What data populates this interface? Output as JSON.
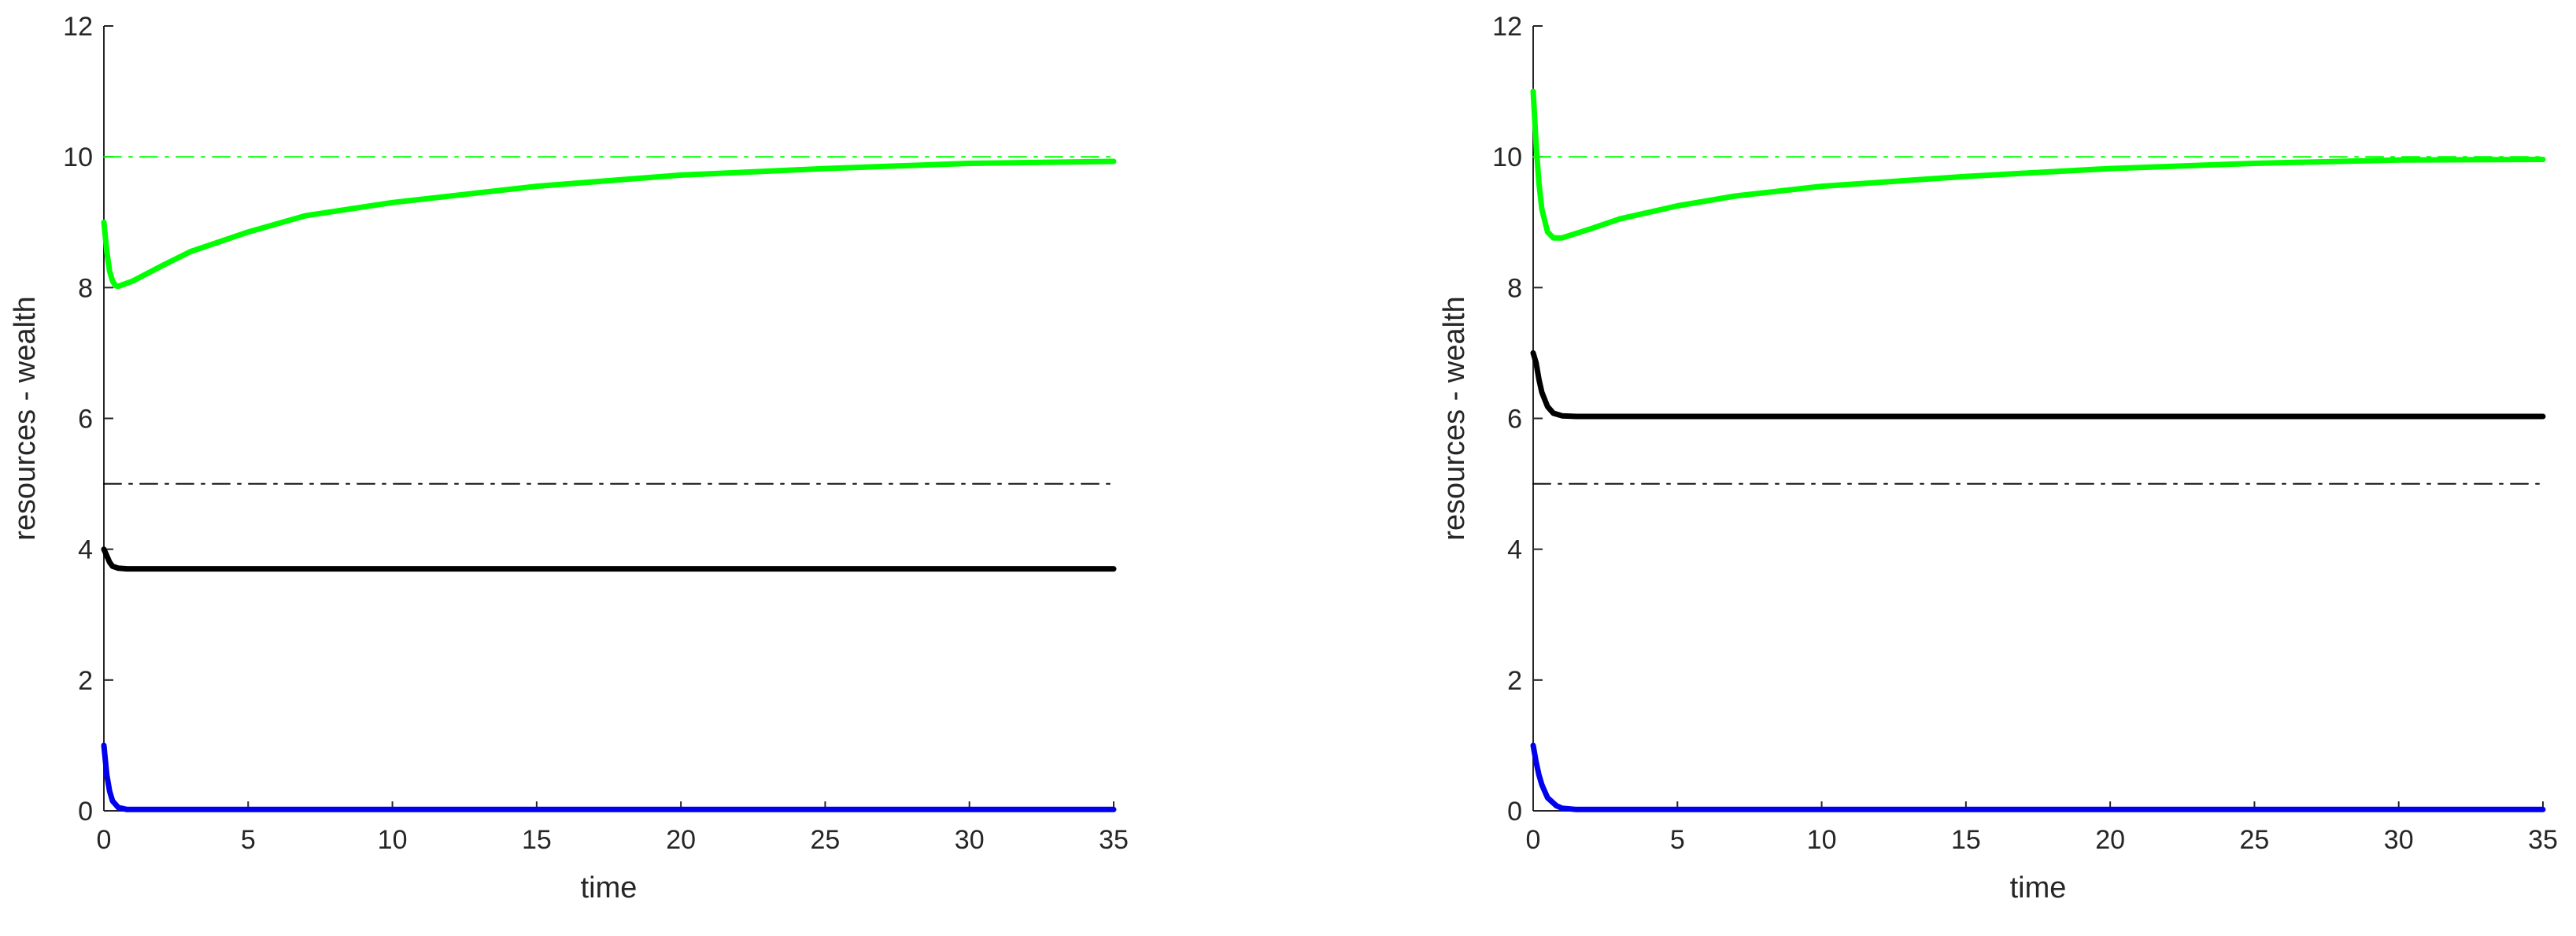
{
  "chart_data": [
    {
      "type": "line",
      "title": "",
      "xlabel": "time",
      "ylabel": "resources - wealth",
      "xlim": [
        0,
        35
      ],
      "ylim": [
        0,
        12
      ],
      "xticks": [
        0,
        5,
        10,
        15,
        20,
        25,
        30,
        35
      ],
      "yticks": [
        0,
        2,
        4,
        6,
        8,
        10,
        12
      ],
      "grid": false,
      "series": [
        {
          "color": "#00ff00",
          "style": "solid",
          "x": [
            0,
            0.1,
            0.2,
            0.3,
            0.4,
            0.5,
            1,
            2,
            3,
            5,
            7,
            10,
            15,
            20,
            25,
            30,
            35
          ],
          "y": [
            9.0,
            8.55,
            8.25,
            8.1,
            8.03,
            8.02,
            8.1,
            8.33,
            8.55,
            8.85,
            9.1,
            9.3,
            9.55,
            9.72,
            9.82,
            9.9,
            9.93
          ]
        },
        {
          "color": "#00ff00",
          "style": "dashdot",
          "x": [
            0,
            35
          ],
          "y": [
            10,
            10
          ]
        },
        {
          "color": "#000000",
          "style": "dashdot",
          "x": [
            0,
            35
          ],
          "y": [
            5,
            5
          ]
        },
        {
          "color": "#000000",
          "style": "solid",
          "x": [
            0,
            0.1,
            0.2,
            0.3,
            0.5,
            0.8,
            1,
            35
          ],
          "y": [
            4.0,
            3.9,
            3.8,
            3.74,
            3.71,
            3.7,
            3.7,
            3.7
          ]
        },
        {
          "color": "#0000ee",
          "style": "solid",
          "x": [
            0,
            0.1,
            0.2,
            0.3,
            0.5,
            0.8,
            1,
            35
          ],
          "y": [
            1.0,
            0.55,
            0.3,
            0.15,
            0.05,
            0.02,
            0.02,
            0.02
          ]
        }
      ]
    },
    {
      "type": "line",
      "title": "",
      "xlabel": "time",
      "ylabel": "resources - wealth",
      "xlim": [
        0,
        35
      ],
      "ylim": [
        0,
        12
      ],
      "xticks": [
        0,
        5,
        10,
        15,
        20,
        25,
        30,
        35
      ],
      "yticks": [
        0,
        2,
        4,
        6,
        8,
        10,
        12
      ],
      "grid": false,
      "series": [
        {
          "color": "#00ff00",
          "style": "solid",
          "x": [
            0,
            0.1,
            0.2,
            0.3,
            0.5,
            0.7,
            1,
            2,
            3,
            5,
            7,
            10,
            15,
            20,
            25,
            30,
            35
          ],
          "y": [
            11.0,
            10.2,
            9.6,
            9.2,
            8.85,
            8.76,
            8.76,
            8.9,
            9.05,
            9.25,
            9.4,
            9.55,
            9.7,
            9.82,
            9.9,
            9.95,
            9.96
          ]
        },
        {
          "color": "#00ff00",
          "style": "dashdot",
          "x": [
            0,
            35
          ],
          "y": [
            10,
            10
          ]
        },
        {
          "color": "#000000",
          "style": "dashdot",
          "x": [
            0,
            35
          ],
          "y": [
            5,
            5
          ]
        },
        {
          "color": "#000000",
          "style": "solid",
          "x": [
            0,
            0.1,
            0.2,
            0.3,
            0.5,
            0.7,
            1,
            1.5,
            35
          ],
          "y": [
            7.0,
            6.85,
            6.6,
            6.4,
            6.18,
            6.08,
            6.04,
            6.03,
            6.03
          ]
        },
        {
          "color": "#0000ee",
          "style": "solid",
          "x": [
            0,
            0.1,
            0.2,
            0.3,
            0.5,
            0.8,
            1,
            1.5,
            35
          ],
          "y": [
            1.0,
            0.75,
            0.55,
            0.4,
            0.2,
            0.08,
            0.04,
            0.02,
            0.02
          ]
        }
      ]
    }
  ]
}
